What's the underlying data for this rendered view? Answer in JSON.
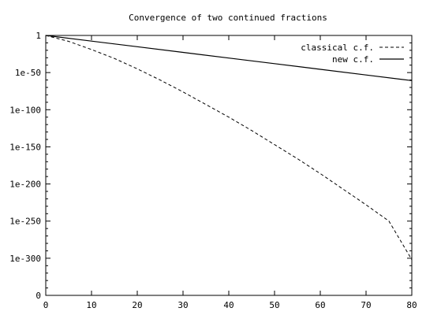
{
  "chart_data": {
    "type": "line",
    "title": "Convergence of two continued fractions",
    "xlabel": "",
    "ylabel": "",
    "x_ticks": [
      0,
      10,
      20,
      30,
      40,
      50,
      60,
      70,
      80
    ],
    "x_tick_labels": [
      "0",
      "10",
      "20",
      "30",
      "40",
      "50",
      "60",
      "70",
      "80"
    ],
    "xlim": [
      0,
      80
    ],
    "y_scale": "log",
    "y_exponent_range": [
      -350,
      0
    ],
    "y_tick_exponents": [
      0,
      -50,
      -100,
      -150,
      -200,
      -250,
      -300,
      -350
    ],
    "y_tick_labels": [
      "1",
      "1e-50",
      "1e-100",
      "1e-150",
      "1e-200",
      "1e-250",
      "1e-300",
      "0"
    ],
    "legend_position": "top-right",
    "grid": false,
    "series": [
      {
        "name": "classical c.f.",
        "style": "dashed",
        "x": [
          0,
          5,
          10,
          15,
          20,
          25,
          30,
          35,
          40,
          45,
          50,
          55,
          60,
          65,
          70,
          75,
          80
        ],
        "y_log10": [
          0,
          -8,
          -19,
          -31,
          -45,
          -60,
          -76,
          -93,
          -110,
          -128,
          -147,
          -166,
          -186,
          -207,
          -228,
          -250,
          -302
        ]
      },
      {
        "name": "new c.f.",
        "style": "solid",
        "x": [
          0,
          10,
          20,
          30,
          40,
          50,
          60,
          70,
          80
        ],
        "y_log10": [
          0,
          -7.6,
          -15.2,
          -22.8,
          -30.4,
          -38,
          -45.6,
          -53.2,
          -60.8
        ]
      }
    ]
  }
}
